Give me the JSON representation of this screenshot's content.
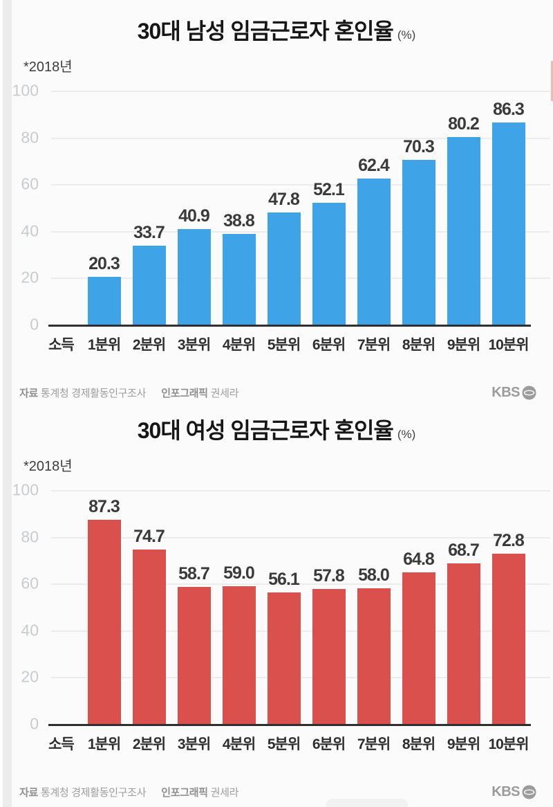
{
  "footer": {
    "source_label": "자료",
    "source_text": "통계청 경제활동인구조사",
    "credit_label": "인포그래픽",
    "credit_text": "권세라",
    "brand": "KBS"
  },
  "chart_data": [
    {
      "type": "bar",
      "title": "30대 남성 임금근로자 혼인율",
      "unit_suffix": "(%)",
      "annotation": "*2018년",
      "xlabel": "소득",
      "categories": [
        "1분위",
        "2분위",
        "3분위",
        "4분위",
        "5분위",
        "6분위",
        "7분위",
        "8분위",
        "9분위",
        "10분위"
      ],
      "values": [
        20.3,
        33.7,
        40.9,
        38.8,
        47.8,
        52.1,
        62.4,
        70.3,
        80.2,
        86.3
      ],
      "ylim": [
        0,
        100
      ],
      "yticks": [
        100,
        80,
        60,
        40,
        20,
        0
      ],
      "grid": true,
      "legend": "none",
      "value_labels": true,
      "bar_color": "#3fa3e8"
    },
    {
      "type": "bar",
      "title": "30대 여성 임금근로자 혼인율",
      "unit_suffix": "(%)",
      "annotation": "*2018년",
      "xlabel": "소득",
      "categories": [
        "1분위",
        "2분위",
        "3분위",
        "4분위",
        "5분위",
        "6분위",
        "7분위",
        "8분위",
        "9분위",
        "10분위"
      ],
      "values": [
        87.3,
        74.7,
        58.7,
        59.0,
        56.1,
        57.8,
        58.0,
        64.8,
        68.7,
        72.8
      ],
      "ylim": [
        0,
        100
      ],
      "yticks": [
        100,
        80,
        60,
        40,
        20,
        0
      ],
      "grid": true,
      "legend": "none",
      "value_labels": true,
      "bar_color": "#d9504c"
    }
  ]
}
